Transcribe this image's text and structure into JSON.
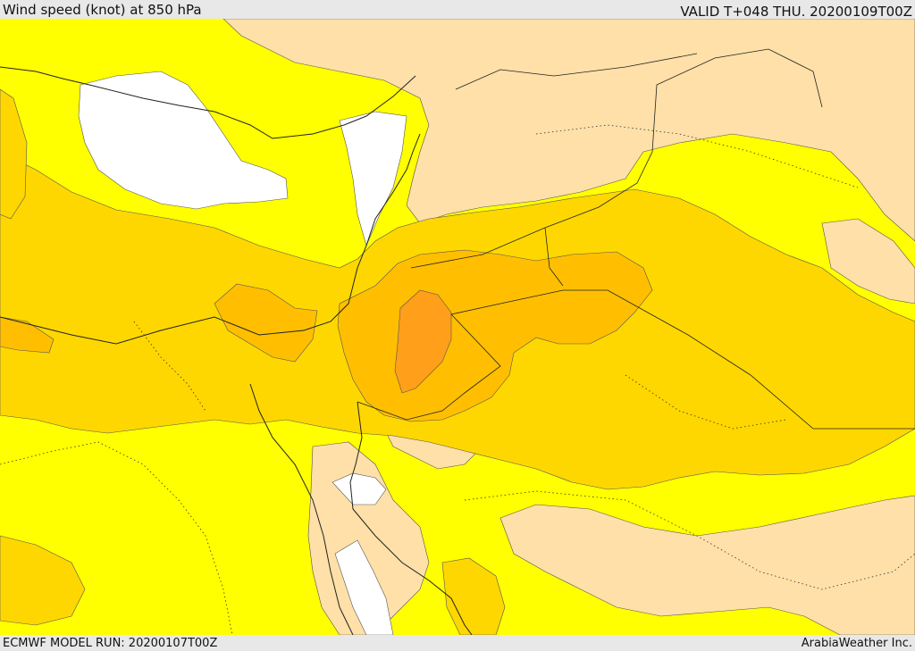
{
  "header": {
    "title": "Wind speed (knot) at 850 hPa",
    "valid": "VALID T+048 THU. 20200109T00Z"
  },
  "footer": {
    "model_run": "ECMWF MODEL RUN: 20200107T00Z",
    "credit": "ArabiaWeather Inc."
  },
  "colors": {
    "band_lowest": "#ffffff",
    "band_low": "#ffe0a8",
    "band_mid": "#ffff00",
    "band_high": "#ffd700",
    "band_higher": "#ffbf00",
    "band_highest": "#ff9f1a",
    "border": "#222222"
  }
}
